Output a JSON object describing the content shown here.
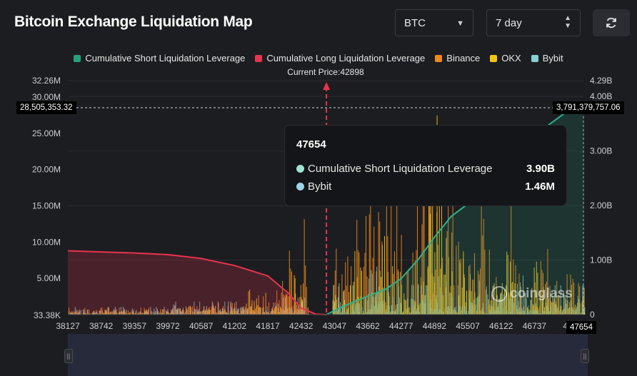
{
  "header": {
    "title": "Bitcoin Exchange Liquidation Map",
    "asset_select": "BTC",
    "range_select": "7 day"
  },
  "legend": [
    {
      "label": "Cumulative Short Liquidation Leverage",
      "color": "#26a17b"
    },
    {
      "label": "Cumulative Long Liquidation Leverage",
      "color": "#e8344e"
    },
    {
      "label": "Binance",
      "color": "#f0891b"
    },
    {
      "label": "OKX",
      "color": "#f3c316"
    },
    {
      "label": "Bybit",
      "color": "#86d1d5"
    }
  ],
  "current_price_label": "Current Price:42898",
  "tooltip": {
    "title": "47654",
    "rows": [
      {
        "label": "Cumulative Short Liquidation Leverage",
        "value": "3.90B",
        "color": "#9fe3d2"
      },
      {
        "label": "Bybit",
        "value": "1.46M",
        "color": "#9cd3e8"
      }
    ]
  },
  "ref_labels": {
    "left": "28,505,353.32",
    "right": "3,791,379,757.06",
    "x": "47654"
  },
  "watermark": "coinglass",
  "icons": {
    "caret": "chevron-down-icon",
    "updown": "up-down-chevron-icon",
    "refresh": "refresh-icon",
    "handle": "drag-handle-icon"
  },
  "chart_data": {
    "type": "bar",
    "title": "Bitcoin Exchange Liquidation Map",
    "x_ticks": [
      "38127",
      "38742",
      "39357",
      "39972",
      "40587",
      "41202",
      "41817",
      "42432",
      "43047",
      "43662",
      "44277",
      "44892",
      "45507",
      "46122",
      "46737",
      "47"
    ],
    "y_left_ticks": [
      "33.38K",
      "5.00M",
      "10.00M",
      "15.00M",
      "20.00M",
      "25.00M",
      "30.00M",
      "32.26M"
    ],
    "y_right_ticks": [
      "0",
      "1.00B",
      "2.00B",
      "3.00B",
      "4.00B",
      "4.29B"
    ],
    "y_left_range": [
      0,
      32260000
    ],
    "y_right_range": [
      0,
      4290000000
    ],
    "x_range": [
      38127,
      47654
    ],
    "current_price": 42898,
    "series": [
      {
        "name": "Cumulative Long Liquidation Leverage",
        "axis": "right",
        "type": "area",
        "points": [
          [
            38127,
            1170000000
          ],
          [
            38742,
            1150000000
          ],
          [
            39357,
            1130000000
          ],
          [
            39972,
            1100000000
          ],
          [
            40587,
            1030000000
          ],
          [
            41202,
            900000000
          ],
          [
            41817,
            710000000
          ],
          [
            42200,
            390000000
          ],
          [
            42432,
            120000000
          ],
          [
            42700,
            10000000
          ],
          [
            42898,
            0
          ]
        ]
      },
      {
        "name": "Cumulative Short Liquidation Leverage",
        "axis": "right",
        "type": "area",
        "points": [
          [
            42898,
            0
          ],
          [
            43200,
            150000000
          ],
          [
            43662,
            340000000
          ],
          [
            44000,
            470000000
          ],
          [
            44277,
            660000000
          ],
          [
            44600,
            1020000000
          ],
          [
            44892,
            1420000000
          ],
          [
            45200,
            1800000000
          ],
          [
            45507,
            2030000000
          ],
          [
            45900,
            2250000000
          ],
          [
            46122,
            2470000000
          ],
          [
            46500,
            2800000000
          ],
          [
            46737,
            3170000000
          ],
          [
            47000,
            3480000000
          ],
          [
            47400,
            3770000000
          ],
          [
            47654,
            3900000000
          ]
        ]
      },
      {
        "name": "Binance",
        "axis": "left",
        "type": "bar",
        "peaks": [
          [
            41700,
            4500000
          ],
          [
            42200,
            9000000
          ],
          [
            42432,
            15000000
          ],
          [
            43200,
            13000000
          ],
          [
            43662,
            26000000
          ],
          [
            44100,
            27000000
          ],
          [
            44700,
            31000000
          ],
          [
            45200,
            22000000
          ],
          [
            45700,
            17000000
          ],
          [
            46300,
            15000000
          ],
          [
            46900,
            11000000
          ],
          [
            47400,
            9000000
          ]
        ]
      },
      {
        "name": "OKX",
        "axis": "left",
        "type": "bar",
        "peaks": [
          [
            41600,
            5000000
          ],
          [
            42300,
            5500000
          ],
          [
            43400,
            9000000
          ],
          [
            44000,
            12000000
          ],
          [
            44900,
            29500000
          ],
          [
            45500,
            11000000
          ],
          [
            46200,
            9000000
          ],
          [
            46800,
            8000000
          ]
        ]
      },
      {
        "name": "Bybit",
        "axis": "left",
        "type": "bar",
        "peaks": [
          [
            41800,
            4000000
          ],
          [
            43100,
            4500000
          ],
          [
            43700,
            9000000
          ],
          [
            44300,
            7000000
          ],
          [
            45000,
            6000000
          ],
          [
            45800,
            6000000
          ],
          [
            46500,
            5500000
          ],
          [
            47654,
            1460000
          ]
        ]
      }
    ]
  }
}
